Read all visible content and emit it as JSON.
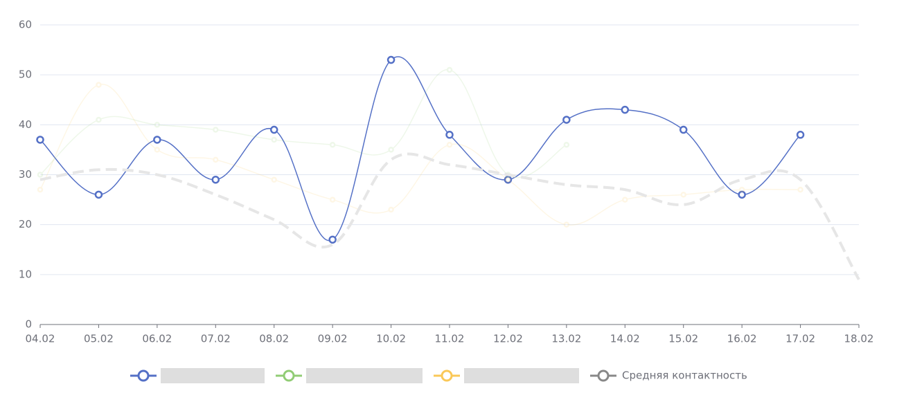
{
  "chart_data": {
    "type": "line",
    "categories": [
      "04.02",
      "05.02",
      "06.02",
      "07.02",
      "08.02",
      "09.02",
      "10.02",
      "11.02",
      "12.02",
      "13.02",
      "14.02",
      "15.02",
      "16.02",
      "17.02",
      "18.02"
    ],
    "series": [
      {
        "color": "#5470c6",
        "opacity": 1,
        "values": [
          37,
          26,
          37,
          29,
          39,
          17,
          53,
          38,
          29,
          41,
          43,
          39,
          26,
          38,
          null
        ]
      },
      {
        "color": "#91cc75",
        "opacity": 0.15,
        "values": [
          30,
          41,
          40,
          39,
          37,
          36,
          35,
          51,
          30,
          36,
          null,
          null,
          null,
          null,
          null
        ]
      },
      {
        "color": "#fac858",
        "opacity": 0.15,
        "values": [
          27,
          48,
          35,
          33,
          29,
          25,
          23,
          36,
          29,
          20,
          25,
          26,
          27,
          27,
          null
        ]
      },
      {
        "name": "Средняя контактность",
        "color": "#888888",
        "line_color": "#e6e6e6",
        "dashed": true,
        "opacity": 1,
        "values": [
          29,
          31,
          30,
          26,
          21,
          16,
          33,
          32,
          30,
          28,
          27,
          24,
          29,
          29,
          9
        ]
      }
    ],
    "ylim": [
      0,
      60
    ],
    "yticks": [
      0,
      10,
      20,
      30,
      40,
      50,
      60
    ],
    "grid": true
  }
}
